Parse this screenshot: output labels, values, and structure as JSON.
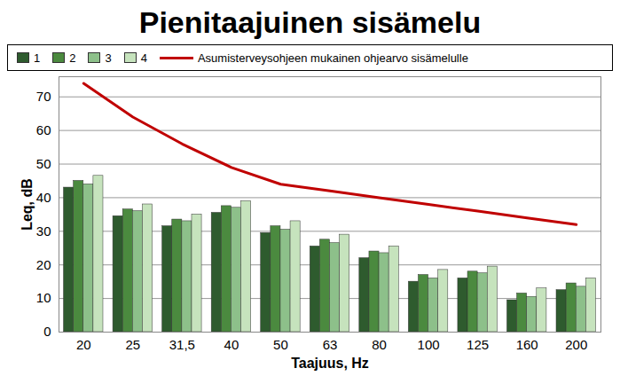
{
  "chart_data": {
    "type": "bar",
    "title": "Pienitaajuinen sisämelu",
    "x_label": "Taajuus, Hz",
    "y_label": "Leq, dB",
    "categories": [
      "20",
      "25",
      "31,5",
      "40",
      "50",
      "63",
      "80",
      "100",
      "125",
      "160",
      "200"
    ],
    "series": [
      {
        "name": "1",
        "type": "bar",
        "color": "#2e5b2e",
        "values": [
          43,
          34.5,
          31.5,
          35.5,
          29.5,
          25.5,
          22,
          15,
          16,
          9.5,
          12.5
        ]
      },
      {
        "name": "2",
        "type": "bar",
        "color": "#4b8a3f",
        "values": [
          45,
          36.5,
          33.5,
          37.5,
          31.5,
          27.5,
          24,
          17,
          18,
          11.5,
          14.5
        ]
      },
      {
        "name": "3",
        "type": "bar",
        "color": "#8dc08a",
        "values": [
          44,
          36,
          33,
          37,
          30.5,
          26.5,
          23.5,
          16,
          17.5,
          10.5,
          13.5
        ]
      },
      {
        "name": "4",
        "type": "bar",
        "color": "#c6e3bd",
        "values": [
          46.5,
          38,
          35,
          39,
          33,
          29,
          25.5,
          18.5,
          19.5,
          13,
          16
        ]
      },
      {
        "name": "Asumisterveysohjeen mukainen ohjearvo sisämelulle",
        "type": "line",
        "color": "#c00000",
        "values": [
          74,
          64,
          56,
          49,
          44,
          42,
          40,
          38,
          36,
          34,
          32
        ]
      }
    ],
    "ylim": [
      0,
      76
    ],
    "yticks": [
      0,
      10,
      20,
      30,
      40,
      50,
      60,
      70
    ],
    "grid": true,
    "legend": "top"
  }
}
